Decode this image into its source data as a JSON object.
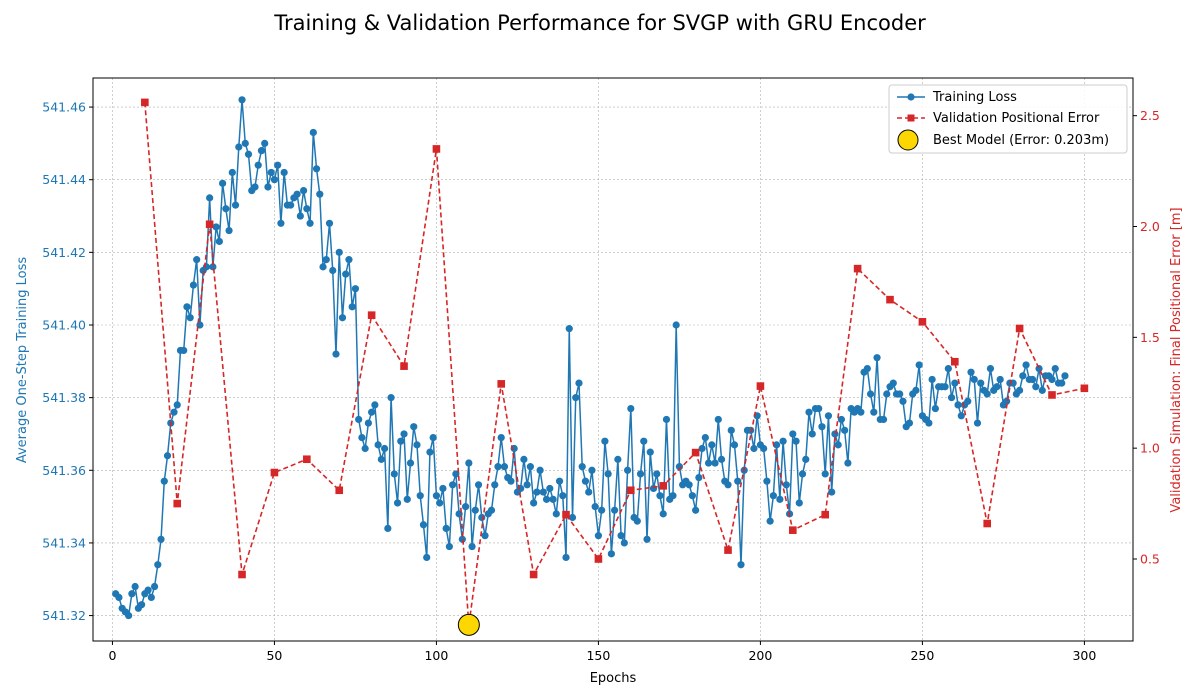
{
  "chart_data": {
    "type": "line",
    "title": "Training & Validation Performance for SVGP with GRU Encoder",
    "xlabel": "Epochs",
    "ylabel_left": "Average One-Step Training Loss",
    "ylabel_right": "Validation Simulation: Final Positional Error [m]",
    "xlim": [
      -6,
      315
    ],
    "ylim_left": [
      541.313,
      541.468
    ],
    "ylim_right": [
      0.13,
      2.67
    ],
    "x_ticks": [
      0,
      50,
      100,
      150,
      200,
      250,
      300
    ],
    "y_ticks_left": [
      541.32,
      541.34,
      541.36,
      541.38,
      541.4,
      541.42,
      541.44,
      541.46
    ],
    "y_ticks_left_labels": [
      "541.32",
      "541.34",
      "541.36",
      "541.38",
      "541.40",
      "541.42",
      "541.44",
      "541.46"
    ],
    "y_ticks_right": [
      0.5,
      1.0,
      1.5,
      2.0,
      2.5
    ],
    "y_ticks_right_labels": [
      "0.5",
      "1.0",
      "1.5",
      "2.0",
      "2.5"
    ],
    "grid": true,
    "legend_position": "top-right",
    "colors": {
      "training": "#1f77b4",
      "validation": "#d62728",
      "best": "#ffd700"
    },
    "series": [
      {
        "name": "Training Loss",
        "axis": "left",
        "style": "line-circle-markers",
        "x_start": 1,
        "x_step": 1,
        "values": [
          541.326,
          541.325,
          541.322,
          541.321,
          541.32,
          541.326,
          541.328,
          541.322,
          541.323,
          541.326,
          541.327,
          541.325,
          541.328,
          541.334,
          541.341,
          541.357,
          541.364,
          541.373,
          541.376,
          541.378,
          541.393,
          541.393,
          541.405,
          541.402,
          541.411,
          541.418,
          541.4,
          541.415,
          541.416,
          541.435,
          541.416,
          541.427,
          541.423,
          541.439,
          541.432,
          541.426,
          541.442,
          541.433,
          541.449,
          541.462,
          541.45,
          541.447,
          541.437,
          541.438,
          541.444,
          541.448,
          541.45,
          541.438,
          541.442,
          541.44,
          541.444,
          541.428,
          541.442,
          541.433,
          541.433,
          541.435,
          541.436,
          541.43,
          541.437,
          541.432,
          541.428,
          541.453,
          541.443,
          541.436,
          541.416,
          541.418,
          541.428,
          541.415,
          541.392,
          541.42,
          541.402,
          541.414,
          541.418,
          541.405,
          541.41,
          541.374,
          541.369,
          541.366,
          541.373,
          541.376,
          541.378,
          541.367,
          541.363,
          541.366,
          541.344,
          541.38,
          541.359,
          541.351,
          541.368,
          541.37,
          541.352,
          541.362,
          541.372,
          541.367,
          541.353,
          541.345,
          541.336,
          541.365,
          541.369,
          541.353,
          541.351,
          541.355,
          541.344,
          541.339,
          541.356,
          541.359,
          541.348,
          541.341,
          541.35,
          541.362,
          541.339,
          541.349,
          541.356,
          541.347,
          541.342,
          541.348,
          541.349,
          541.356,
          541.361,
          541.369,
          541.361,
          541.358,
          541.357,
          541.366,
          541.354,
          541.355,
          541.363,
          541.356,
          541.361,
          541.351,
          541.354,
          541.36,
          541.354,
          541.352,
          541.355,
          541.352,
          541.348,
          541.357,
          541.353,
          541.336,
          541.399,
          541.347,
          541.38,
          541.384,
          541.361,
          541.357,
          541.354,
          541.36,
          541.35,
          541.342,
          541.349,
          541.368,
          541.359,
          541.337,
          541.349,
          541.363,
          541.342,
          541.34,
          541.36,
          541.377,
          541.347,
          541.346,
          541.359,
          541.368,
          541.341,
          541.365,
          541.355,
          541.359,
          541.353,
          541.348,
          541.374,
          541.352,
          541.353,
          541.4,
          541.361,
          541.356,
          541.357,
          541.356,
          541.353,
          541.349,
          541.358,
          541.366,
          541.369,
          541.362,
          541.367,
          541.362,
          541.374,
          541.363,
          541.357,
          541.356,
          541.371,
          541.367,
          541.357,
          541.334,
          541.36,
          541.371,
          541.371,
          541.366,
          541.375,
          541.367,
          541.366,
          541.357,
          541.346,
          541.353,
          541.367,
          541.352,
          541.368,
          541.356,
          541.348,
          541.37,
          541.368,
          541.351,
          541.359,
          541.363,
          541.376,
          541.37,
          541.377,
          541.377,
          541.372,
          541.359,
          541.375,
          541.354,
          541.37,
          541.367,
          541.374,
          541.371,
          541.362,
          541.377,
          541.376,
          541.377,
          541.376,
          541.387,
          541.388,
          541.381,
          541.376,
          541.391,
          541.374,
          541.374,
          541.381,
          541.383,
          541.384,
          541.381,
          541.381,
          541.379,
          541.372,
          541.373,
          541.381,
          541.382,
          541.389,
          541.375,
          541.374,
          541.373,
          541.385,
          541.377,
          541.383,
          541.383,
          541.383,
          541.388,
          541.38,
          541.384,
          541.378,
          541.375,
          541.378,
          541.379,
          541.387,
          541.385,
          541.373,
          541.384,
          541.382,
          541.381,
          541.388,
          541.382,
          541.383,
          541.385,
          541.378,
          541.379,
          541.384,
          541.384,
          541.381,
          541.382,
          541.386,
          541.389,
          541.385,
          541.385,
          541.383,
          541.388,
          541.382,
          541.386,
          541.386,
          541.385,
          541.388,
          541.384,
          541.384,
          541.386
        ]
      },
      {
        "name": "Validation Positional Error",
        "axis": "right",
        "style": "dashed-square-markers",
        "x": [
          10,
          20,
          30,
          40,
          50,
          60,
          70,
          80,
          90,
          100,
          110,
          120,
          130,
          140,
          150,
          160,
          170,
          180,
          190,
          200,
          210,
          220,
          230,
          240,
          250,
          260,
          270,
          280,
          290,
          300
        ],
        "values": [
          2.56,
          0.75,
          2.01,
          0.43,
          0.89,
          0.95,
          0.81,
          1.6,
          1.37,
          2.35,
          0.2,
          1.29,
          0.43,
          0.7,
          0.5,
          0.81,
          0.83,
          0.98,
          0.54,
          1.28,
          0.63,
          0.7,
          1.81,
          1.67,
          1.57,
          1.39,
          0.66,
          1.54,
          1.24,
          1.27
        ]
      },
      {
        "name": "Best Model (Error: 0.203m)",
        "axis": "right",
        "style": "large-circle-marker",
        "x": [
          110
        ],
        "values": [
          0.203
        ]
      }
    ]
  }
}
